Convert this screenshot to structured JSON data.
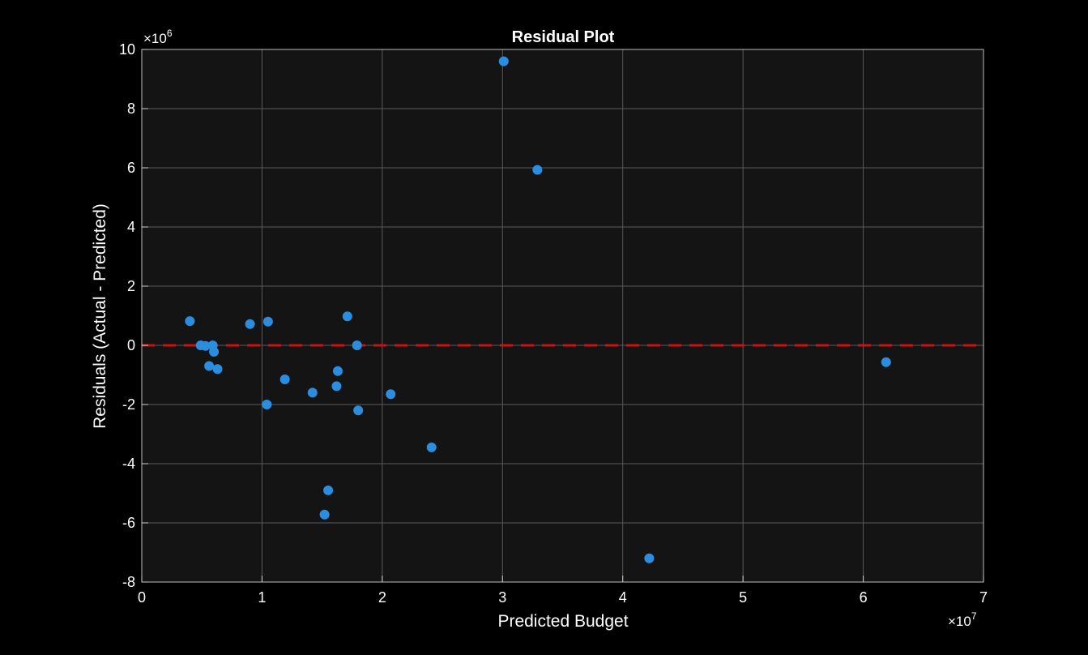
{
  "chart_data": {
    "type": "scatter",
    "title": "Residual Plot",
    "xlabel": "Predicted Budget",
    "ylabel": "Residuals (Actual - Predicted)",
    "xlim": [
      0,
      7
    ],
    "ylim": [
      -8,
      10
    ],
    "x_ticks": [
      0,
      1,
      2,
      3,
      4,
      5,
      6,
      7
    ],
    "y_ticks": [
      -8,
      -6,
      -4,
      -2,
      0,
      2,
      4,
      6,
      8,
      10
    ],
    "x_exponent": {
      "base": "×10",
      "power": "7"
    },
    "y_exponent": {
      "base": "×10",
      "power": "6"
    },
    "x_unit_scale": 10000000,
    "y_unit_scale": 1000000,
    "grid": true,
    "reference_line": {
      "y": 0,
      "style": "dashed",
      "color": "#cc1111"
    },
    "colors": {
      "background": "#000000",
      "plot_area": "#141414",
      "grid": "#5a5a5a",
      "points": "#2b8de0",
      "text": "#ffffff"
    },
    "series": [
      {
        "points": [
          [
            0.4,
            0.82
          ],
          [
            0.49,
            0.0
          ],
          [
            0.53,
            -0.02
          ],
          [
            0.56,
            -0.7
          ],
          [
            0.59,
            0.0
          ],
          [
            0.6,
            -0.22
          ],
          [
            0.63,
            -0.8
          ],
          [
            0.9,
            0.72
          ],
          [
            1.04,
            -2.0
          ],
          [
            1.05,
            0.8
          ],
          [
            1.19,
            -1.15
          ],
          [
            1.42,
            -1.6
          ],
          [
            1.52,
            -5.72
          ],
          [
            1.55,
            -4.9
          ],
          [
            1.62,
            -1.38
          ],
          [
            1.63,
            -0.87
          ],
          [
            1.71,
            0.98
          ],
          [
            1.79,
            0.0
          ],
          [
            1.8,
            -2.2
          ],
          [
            2.07,
            -1.65
          ],
          [
            2.41,
            -3.45
          ],
          [
            3.01,
            9.6
          ],
          [
            3.29,
            5.93
          ],
          [
            4.22,
            -7.2
          ],
          [
            6.19,
            -0.57
          ]
        ]
      }
    ]
  }
}
